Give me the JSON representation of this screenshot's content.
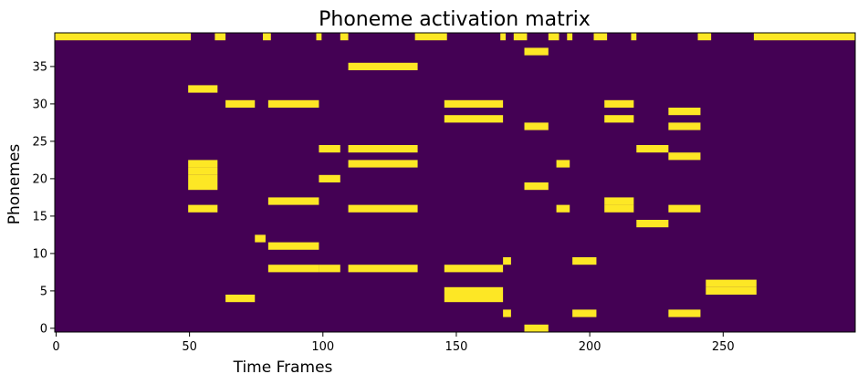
{
  "chart_data": {
    "type": "heatmap",
    "title": "Phoneme activation matrix",
    "xlabel": "Time Frames",
    "ylabel": "Phonemes",
    "xlim": [
      0,
      299
    ],
    "ylim": [
      0,
      39
    ],
    "xticks": [
      0,
      50,
      100,
      150,
      200,
      250
    ],
    "yticks": [
      0,
      5,
      10,
      15,
      20,
      25,
      30,
      35
    ],
    "colormap": "viridis",
    "colors": {
      "inactive": "#440154",
      "active": "#fde725"
    },
    "values_description": "binary matrix: 1 = active",
    "active_cells": [
      {
        "phoneme": 39,
        "frames": [
          [
            0,
            50
          ],
          [
            60,
            63
          ],
          [
            78,
            80
          ],
          [
            98,
            99
          ],
          [
            107,
            109
          ],
          [
            135,
            146
          ],
          [
            167,
            168
          ],
          [
            172,
            176
          ],
          [
            185,
            188
          ],
          [
            192,
            193
          ],
          [
            202,
            206
          ],
          [
            216,
            217
          ],
          [
            241,
            245
          ],
          [
            262,
            299
          ]
        ]
      },
      {
        "phoneme": 37,
        "frames": [
          [
            176,
            184
          ]
        ]
      },
      {
        "phoneme": 35,
        "frames": [
          [
            110,
            135
          ]
        ]
      },
      {
        "phoneme": 32,
        "frames": [
          [
            50,
            60
          ]
        ]
      },
      {
        "phoneme": 30,
        "frames": [
          [
            64,
            74
          ],
          [
            80,
            98
          ],
          [
            146,
            167
          ],
          [
            206,
            216
          ]
        ]
      },
      {
        "phoneme": 29,
        "frames": [
          [
            230,
            241
          ]
        ]
      },
      {
        "phoneme": 28,
        "frames": [
          [
            146,
            167
          ],
          [
            206,
            216
          ]
        ]
      },
      {
        "phoneme": 27,
        "frames": [
          [
            176,
            184
          ],
          [
            230,
            241
          ]
        ]
      },
      {
        "phoneme": 24,
        "frames": [
          [
            99,
            106
          ],
          [
            110,
            135
          ],
          [
            218,
            229
          ]
        ]
      },
      {
        "phoneme": 23,
        "frames": [
          [
            230,
            241
          ]
        ]
      },
      {
        "phoneme": 22,
        "frames": [
          [
            50,
            60
          ],
          [
            110,
            135
          ],
          [
            188,
            192
          ]
        ]
      },
      {
        "phoneme": 21,
        "frames": [
          [
            50,
            60
          ]
        ]
      },
      {
        "phoneme": 20,
        "frames": [
          [
            50,
            60
          ],
          [
            99,
            106
          ]
        ]
      },
      {
        "phoneme": 19,
        "frames": [
          [
            50,
            60
          ],
          [
            176,
            184
          ]
        ]
      },
      {
        "phoneme": 17,
        "frames": [
          [
            80,
            98
          ],
          [
            206,
            216
          ]
        ]
      },
      {
        "phoneme": 16,
        "frames": [
          [
            50,
            60
          ],
          [
            110,
            135
          ],
          [
            188,
            192
          ],
          [
            206,
            216
          ],
          [
            230,
            241
          ]
        ]
      },
      {
        "phoneme": 14,
        "frames": [
          [
            218,
            229
          ]
        ]
      },
      {
        "phoneme": 12,
        "frames": [
          [
            75,
            78
          ]
        ]
      },
      {
        "phoneme": 11,
        "frames": [
          [
            80,
            98
          ]
        ]
      },
      {
        "phoneme": 9,
        "frames": [
          [
            168,
            170
          ],
          [
            194,
            202
          ]
        ]
      },
      {
        "phoneme": 8,
        "frames": [
          [
            80,
            98
          ],
          [
            99,
            106
          ],
          [
            110,
            135
          ],
          [
            146,
            167
          ]
        ]
      },
      {
        "phoneme": 6,
        "frames": [
          [
            244,
            262
          ]
        ]
      },
      {
        "phoneme": 5,
        "frames": [
          [
            146,
            167
          ],
          [
            244,
            262
          ]
        ]
      },
      {
        "phoneme": 4,
        "frames": [
          [
            64,
            74
          ],
          [
            146,
            167
          ]
        ]
      },
      {
        "phoneme": 2,
        "frames": [
          [
            168,
            170
          ],
          [
            194,
            202
          ],
          [
            230,
            241
          ]
        ]
      },
      {
        "phoneme": 0,
        "frames": [
          [
            176,
            184
          ]
        ]
      }
    ]
  }
}
